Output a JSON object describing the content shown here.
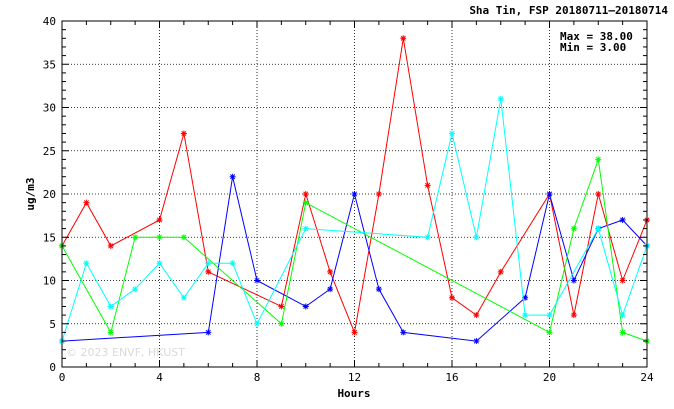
{
  "chart_data": {
    "type": "line",
    "title": "Sha Tin, FSP 20180711–20180714",
    "xlabel": "Hours",
    "ylabel": "ug/m3",
    "xlim": [
      0,
      24
    ],
    "ylim": [
      0,
      40
    ],
    "xticks": [
      0,
      4,
      8,
      12,
      16,
      20,
      24
    ],
    "yticks": [
      0,
      5,
      10,
      15,
      20,
      25,
      30,
      35,
      40
    ],
    "grid": true,
    "stats": {
      "max": "Max = 38.00",
      "min": "Min =  3.00"
    },
    "watermark": "© 2023  ENVF, HKUST",
    "series": [
      {
        "color": "#ff0000",
        "points": [
          [
            0,
            14
          ],
          [
            1,
            19
          ],
          [
            2,
            14
          ],
          [
            4,
            17
          ],
          [
            5,
            27
          ],
          [
            6,
            11
          ],
          [
            9,
            7
          ],
          [
            10,
            20
          ],
          [
            11,
            11
          ],
          [
            12,
            4
          ],
          [
            13,
            20
          ],
          [
            14,
            38
          ],
          [
            15,
            21
          ],
          [
            16,
            8
          ],
          [
            17,
            6
          ],
          [
            18,
            11
          ],
          [
            20,
            20
          ],
          [
            21,
            6
          ],
          [
            22,
            20
          ],
          [
            23,
            10
          ],
          [
            24,
            17
          ]
        ]
      },
      {
        "color": "#0000ff",
        "points": [
          [
            0,
            3
          ],
          [
            6,
            4
          ],
          [
            7,
            22
          ],
          [
            8,
            10
          ],
          [
            10,
            7
          ],
          [
            11,
            9
          ],
          [
            12,
            20
          ],
          [
            13,
            9
          ],
          [
            14,
            4
          ],
          [
            17,
            3
          ],
          [
            19,
            8
          ],
          [
            20,
            20
          ],
          [
            21,
            10
          ],
          [
            22,
            16
          ],
          [
            23,
            17
          ],
          [
            24,
            14
          ]
        ]
      },
      {
        "color": "#00ff00",
        "points": [
          [
            0,
            14
          ],
          [
            2,
            4
          ],
          [
            3,
            15
          ],
          [
            4,
            15
          ],
          [
            5,
            15
          ],
          [
            9,
            5
          ],
          [
            10,
            19
          ],
          [
            20,
            4
          ],
          [
            21,
            16
          ],
          [
            22,
            24
          ],
          [
            23,
            4
          ],
          [
            24,
            3
          ]
        ]
      },
      {
        "color": "#00ffff",
        "points": [
          [
            0,
            3
          ],
          [
            1,
            12
          ],
          [
            2,
            7
          ],
          [
            3,
            9
          ],
          [
            4,
            12
          ],
          [
            5,
            8
          ],
          [
            6,
            12
          ],
          [
            7,
            12
          ],
          [
            8,
            5
          ],
          [
            10,
            16
          ],
          [
            15,
            15
          ],
          [
            16,
            27
          ],
          [
            17,
            15
          ],
          [
            18,
            31
          ],
          [
            19,
            6
          ],
          [
            20,
            6
          ],
          [
            22,
            16
          ],
          [
            23,
            6
          ],
          [
            24,
            14
          ]
        ]
      }
    ]
  }
}
